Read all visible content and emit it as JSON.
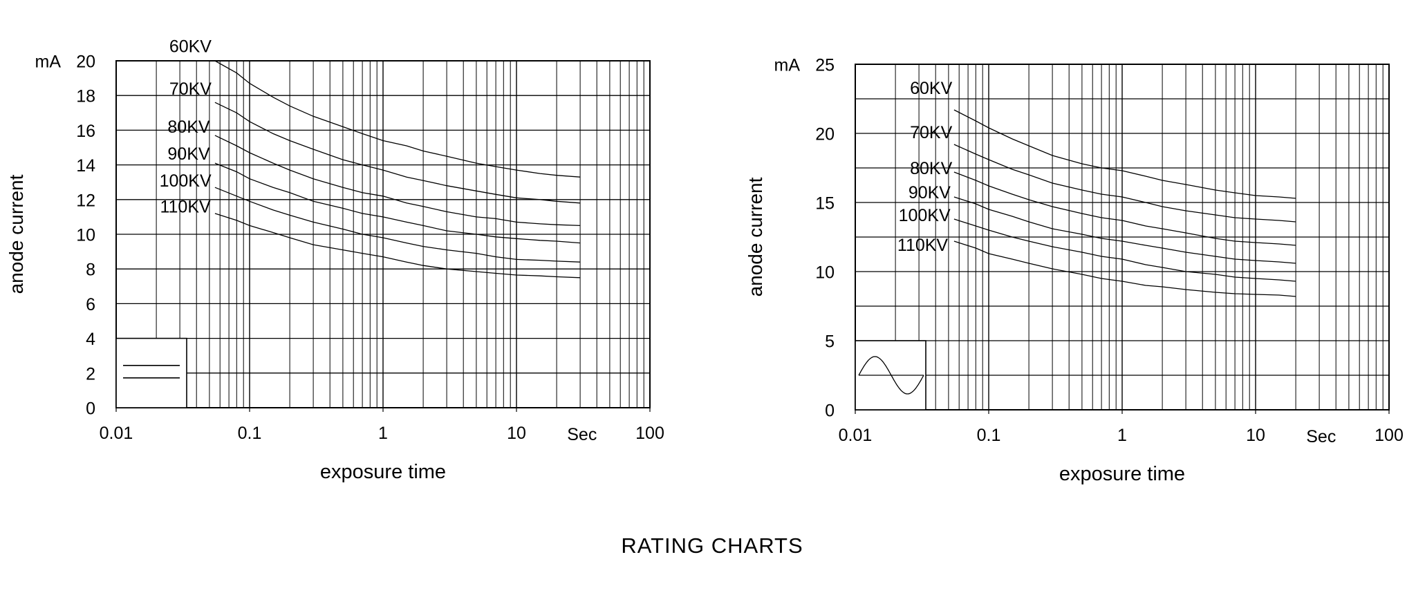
{
  "page": {
    "title": "RATING CHARTS",
    "background": "#ffffff",
    "line_color": "#000000"
  },
  "chart_data": [
    {
      "type": "line",
      "name": "left-rating-chart",
      "waveform": "dc",
      "waveform_icon": "dc-waveform-icon",
      "x_scale": "log",
      "xlim": [
        0.01,
        100
      ],
      "x_ticks": [
        {
          "value": 0.01,
          "label": "0.01"
        },
        {
          "value": 0.1,
          "label": "0.1"
        },
        {
          "value": 1,
          "label": "1"
        },
        {
          "value": 10,
          "label": "10"
        },
        {
          "value": 100,
          "label": "100"
        }
      ],
      "x_unit": {
        "label": "Sec",
        "t": 31
      },
      "xlabel": "exposure time",
      "ylabel": "anode current",
      "y_unit": "mA",
      "ylim": [
        0,
        20
      ],
      "y_grid_step": 2,
      "y_ticks": [
        {
          "value": 0,
          "label": "0"
        },
        {
          "value": 2,
          "label": "2"
        },
        {
          "value": 4,
          "label": "4"
        },
        {
          "value": 6,
          "label": "6"
        },
        {
          "value": 8,
          "label": "8"
        },
        {
          "value": 10,
          "label": "10"
        },
        {
          "value": 12,
          "label": "12"
        },
        {
          "value": 14,
          "label": "14"
        },
        {
          "value": 16,
          "label": "16"
        },
        {
          "value": 18,
          "label": "18"
        },
        {
          "value": 20,
          "label": "20"
        }
      ],
      "grid": true,
      "legend_position": "bottom-left-inset",
      "series": [
        {
          "name": "60KV",
          "label_pos": {
            "t": 0.036,
            "mA": 20.85
          },
          "points": [
            [
              0.055,
              20
            ],
            [
              0.08,
              19.3
            ],
            [
              0.1,
              18.7
            ],
            [
              0.15,
              17.9
            ],
            [
              0.2,
              17.4
            ],
            [
              0.3,
              16.8
            ],
            [
              0.5,
              16.2
            ],
            [
              0.7,
              15.8
            ],
            [
              1,
              15.4
            ],
            [
              1.5,
              15.1
            ],
            [
              2,
              14.8
            ],
            [
              3,
              14.5
            ],
            [
              5,
              14.1
            ],
            [
              7,
              13.9
            ],
            [
              10,
              13.7
            ],
            [
              15,
              13.5
            ],
            [
              20,
              13.4
            ],
            [
              30,
              13.3
            ]
          ]
        },
        {
          "name": "70KV",
          "label_pos": {
            "t": 0.036,
            "mA": 18.4
          },
          "points": [
            [
              0.055,
              17.6
            ],
            [
              0.08,
              17.0
            ],
            [
              0.1,
              16.5
            ],
            [
              0.15,
              15.8
            ],
            [
              0.2,
              15.4
            ],
            [
              0.3,
              14.9
            ],
            [
              0.5,
              14.3
            ],
            [
              0.7,
              14.0
            ],
            [
              1,
              13.7
            ],
            [
              1.5,
              13.3
            ],
            [
              2,
              13.1
            ],
            [
              3,
              12.8
            ],
            [
              5,
              12.5
            ],
            [
              7,
              12.3
            ],
            [
              10,
              12.1
            ],
            [
              15,
              12.0
            ],
            [
              20,
              11.9
            ],
            [
              30,
              11.8
            ]
          ]
        },
        {
          "name": "80KV",
          "label_pos": {
            "t": 0.035,
            "mA": 16.2
          },
          "points": [
            [
              0.055,
              15.7
            ],
            [
              0.08,
              15.1
            ],
            [
              0.1,
              14.7
            ],
            [
              0.15,
              14.1
            ],
            [
              0.2,
              13.7
            ],
            [
              0.3,
              13.2
            ],
            [
              0.5,
              12.7
            ],
            [
              0.7,
              12.4
            ],
            [
              1,
              12.2
            ],
            [
              1.5,
              11.8
            ],
            [
              2,
              11.6
            ],
            [
              3,
              11.3
            ],
            [
              5,
              11.0
            ],
            [
              7,
              10.9
            ],
            [
              10,
              10.7
            ],
            [
              15,
              10.6
            ],
            [
              20,
              10.55
            ],
            [
              30,
              10.5
            ]
          ]
        },
        {
          "name": "90KV",
          "label_pos": {
            "t": 0.035,
            "mA": 14.65
          },
          "points": [
            [
              0.055,
              14.1
            ],
            [
              0.08,
              13.6
            ],
            [
              0.1,
              13.2
            ],
            [
              0.15,
              12.7
            ],
            [
              0.2,
              12.4
            ],
            [
              0.3,
              11.9
            ],
            [
              0.5,
              11.5
            ],
            [
              0.7,
              11.2
            ],
            [
              1,
              11.0
            ],
            [
              1.5,
              10.7
            ],
            [
              2,
              10.5
            ],
            [
              3,
              10.2
            ],
            [
              5,
              10.0
            ],
            [
              7,
              9.85
            ],
            [
              10,
              9.75
            ],
            [
              15,
              9.65
            ],
            [
              20,
              9.6
            ],
            [
              30,
              9.5
            ]
          ]
        },
        {
          "name": "100KV",
          "label_pos": {
            "t": 0.033,
            "mA": 13.1
          },
          "points": [
            [
              0.055,
              12.7
            ],
            [
              0.08,
              12.2
            ],
            [
              0.1,
              11.9
            ],
            [
              0.15,
              11.4
            ],
            [
              0.2,
              11.1
            ],
            [
              0.3,
              10.7
            ],
            [
              0.5,
              10.3
            ],
            [
              0.7,
              10.0
            ],
            [
              1,
              9.8
            ],
            [
              1.5,
              9.5
            ],
            [
              2,
              9.3
            ],
            [
              3,
              9.1
            ],
            [
              5,
              8.9
            ],
            [
              7,
              8.7
            ],
            [
              10,
              8.55
            ],
            [
              15,
              8.5
            ],
            [
              20,
              8.45
            ],
            [
              30,
              8.4
            ]
          ]
        },
        {
          "name": "110KV",
          "label_pos": {
            "t": 0.033,
            "mA": 11.6
          },
          "points": [
            [
              0.055,
              11.2
            ],
            [
              0.08,
              10.8
            ],
            [
              0.1,
              10.5
            ],
            [
              0.15,
              10.1
            ],
            [
              0.2,
              9.8
            ],
            [
              0.3,
              9.4
            ],
            [
              0.5,
              9.1
            ],
            [
              0.7,
              8.9
            ],
            [
              1,
              8.7
            ],
            [
              1.5,
              8.4
            ],
            [
              2,
              8.2
            ],
            [
              3,
              8.0
            ],
            [
              5,
              7.85
            ],
            [
              7,
              7.75
            ],
            [
              10,
              7.65
            ],
            [
              15,
              7.6
            ],
            [
              20,
              7.55
            ],
            [
              30,
              7.5
            ]
          ]
        }
      ]
    },
    {
      "type": "line",
      "name": "right-rating-chart",
      "waveform": "ac",
      "waveform_icon": "ac-sine-waveform-icon",
      "x_scale": "log",
      "xlim": [
        0.01,
        100
      ],
      "x_ticks": [
        {
          "value": 0.01,
          "label": "0.01"
        },
        {
          "value": 0.1,
          "label": "0.1"
        },
        {
          "value": 1,
          "label": "1"
        },
        {
          "value": 10,
          "label": "10"
        },
        {
          "value": 100,
          "label": "100"
        }
      ],
      "x_unit": {
        "label": "Sec",
        "t": 31
      },
      "xlabel": "exposure time",
      "ylabel": "anode current",
      "y_unit": "mA",
      "ylim": [
        0,
        25
      ],
      "y_grid_step": 2.5,
      "y_ticks": [
        {
          "value": 0,
          "label": "0"
        },
        {
          "value": 5,
          "label": "5"
        },
        {
          "value": 10,
          "label": "10"
        },
        {
          "value": 15,
          "label": "15"
        },
        {
          "value": 20,
          "label": "20"
        },
        {
          "value": 25,
          "label": "25"
        }
      ],
      "grid": true,
      "legend_position": "bottom-left-inset",
      "series": [
        {
          "name": "60KV",
          "label_pos": {
            "t": 0.037,
            "mA": 23.3
          },
          "points": [
            [
              0.055,
              21.7
            ],
            [
              0.08,
              20.9
            ],
            [
              0.1,
              20.4
            ],
            [
              0.15,
              19.6
            ],
            [
              0.2,
              19.1
            ],
            [
              0.3,
              18.4
            ],
            [
              0.5,
              17.8
            ],
            [
              0.7,
              17.5
            ],
            [
              1,
              17.3
            ],
            [
              1.5,
              16.9
            ],
            [
              2,
              16.6
            ],
            [
              3,
              16.3
            ],
            [
              5,
              15.9
            ],
            [
              7,
              15.7
            ],
            [
              10,
              15.5
            ],
            [
              15,
              15.4
            ],
            [
              20,
              15.3
            ]
          ]
        },
        {
          "name": "70KV",
          "label_pos": {
            "t": 0.037,
            "mA": 20.1
          },
          "points": [
            [
              0.055,
              19.2
            ],
            [
              0.08,
              18.5
            ],
            [
              0.1,
              18.1
            ],
            [
              0.15,
              17.4
            ],
            [
              0.2,
              17.0
            ],
            [
              0.3,
              16.4
            ],
            [
              0.5,
              15.9
            ],
            [
              0.7,
              15.6
            ],
            [
              1,
              15.4
            ],
            [
              1.5,
              15.0
            ],
            [
              2,
              14.7
            ],
            [
              3,
              14.4
            ],
            [
              5,
              14.1
            ],
            [
              7,
              13.9
            ],
            [
              10,
              13.8
            ],
            [
              15,
              13.7
            ],
            [
              20,
              13.6
            ]
          ]
        },
        {
          "name": "80KV",
          "label_pos": {
            "t": 0.037,
            "mA": 17.5
          },
          "points": [
            [
              0.055,
              17.2
            ],
            [
              0.08,
              16.6
            ],
            [
              0.1,
              16.2
            ],
            [
              0.15,
              15.6
            ],
            [
              0.2,
              15.2
            ],
            [
              0.3,
              14.7
            ],
            [
              0.5,
              14.2
            ],
            [
              0.7,
              13.9
            ],
            [
              1,
              13.7
            ],
            [
              1.5,
              13.3
            ],
            [
              2,
              13.1
            ],
            [
              3,
              12.8
            ],
            [
              5,
              12.4
            ],
            [
              7,
              12.2
            ],
            [
              10,
              12.1
            ],
            [
              15,
              12.0
            ],
            [
              20,
              11.9
            ]
          ]
        },
        {
          "name": "90KV",
          "label_pos": {
            "t": 0.036,
            "mA": 15.75
          },
          "points": [
            [
              0.055,
              15.4
            ],
            [
              0.08,
              14.9
            ],
            [
              0.1,
              14.5
            ],
            [
              0.15,
              14.0
            ],
            [
              0.2,
              13.6
            ],
            [
              0.3,
              13.1
            ],
            [
              0.5,
              12.7
            ],
            [
              0.7,
              12.4
            ],
            [
              1,
              12.2
            ],
            [
              1.5,
              11.9
            ],
            [
              2,
              11.7
            ],
            [
              3,
              11.4
            ],
            [
              5,
              11.1
            ],
            [
              7,
              10.9
            ],
            [
              10,
              10.8
            ],
            [
              15,
              10.7
            ],
            [
              20,
              10.6
            ]
          ]
        },
        {
          "name": "100KV",
          "label_pos": {
            "t": 0.033,
            "mA": 14.1
          },
          "points": [
            [
              0.055,
              13.8
            ],
            [
              0.08,
              13.3
            ],
            [
              0.1,
              13.0
            ],
            [
              0.15,
              12.5
            ],
            [
              0.2,
              12.2
            ],
            [
              0.3,
              11.8
            ],
            [
              0.5,
              11.4
            ],
            [
              0.7,
              11.1
            ],
            [
              1,
              10.9
            ],
            [
              1.5,
              10.5
            ],
            [
              2,
              10.3
            ],
            [
              3,
              10.0
            ],
            [
              5,
              9.8
            ],
            [
              7,
              9.6
            ],
            [
              10,
              9.5
            ],
            [
              15,
              9.4
            ],
            [
              20,
              9.3
            ]
          ]
        },
        {
          "name": "110KV",
          "label_pos": {
            "t": 0.032,
            "mA": 11.95
          },
          "points": [
            [
              0.055,
              12.2
            ],
            [
              0.08,
              11.7
            ],
            [
              0.1,
              11.3
            ],
            [
              0.15,
              10.9
            ],
            [
              0.2,
              10.6
            ],
            [
              0.3,
              10.2
            ],
            [
              0.5,
              9.8
            ],
            [
              0.7,
              9.5
            ],
            [
              1,
              9.3
            ],
            [
              1.5,
              9.0
            ],
            [
              2,
              8.9
            ],
            [
              3,
              8.7
            ],
            [
              5,
              8.5
            ],
            [
              7,
              8.4
            ],
            [
              10,
              8.35
            ],
            [
              15,
              8.3
            ],
            [
              20,
              8.2
            ]
          ]
        }
      ]
    }
  ]
}
